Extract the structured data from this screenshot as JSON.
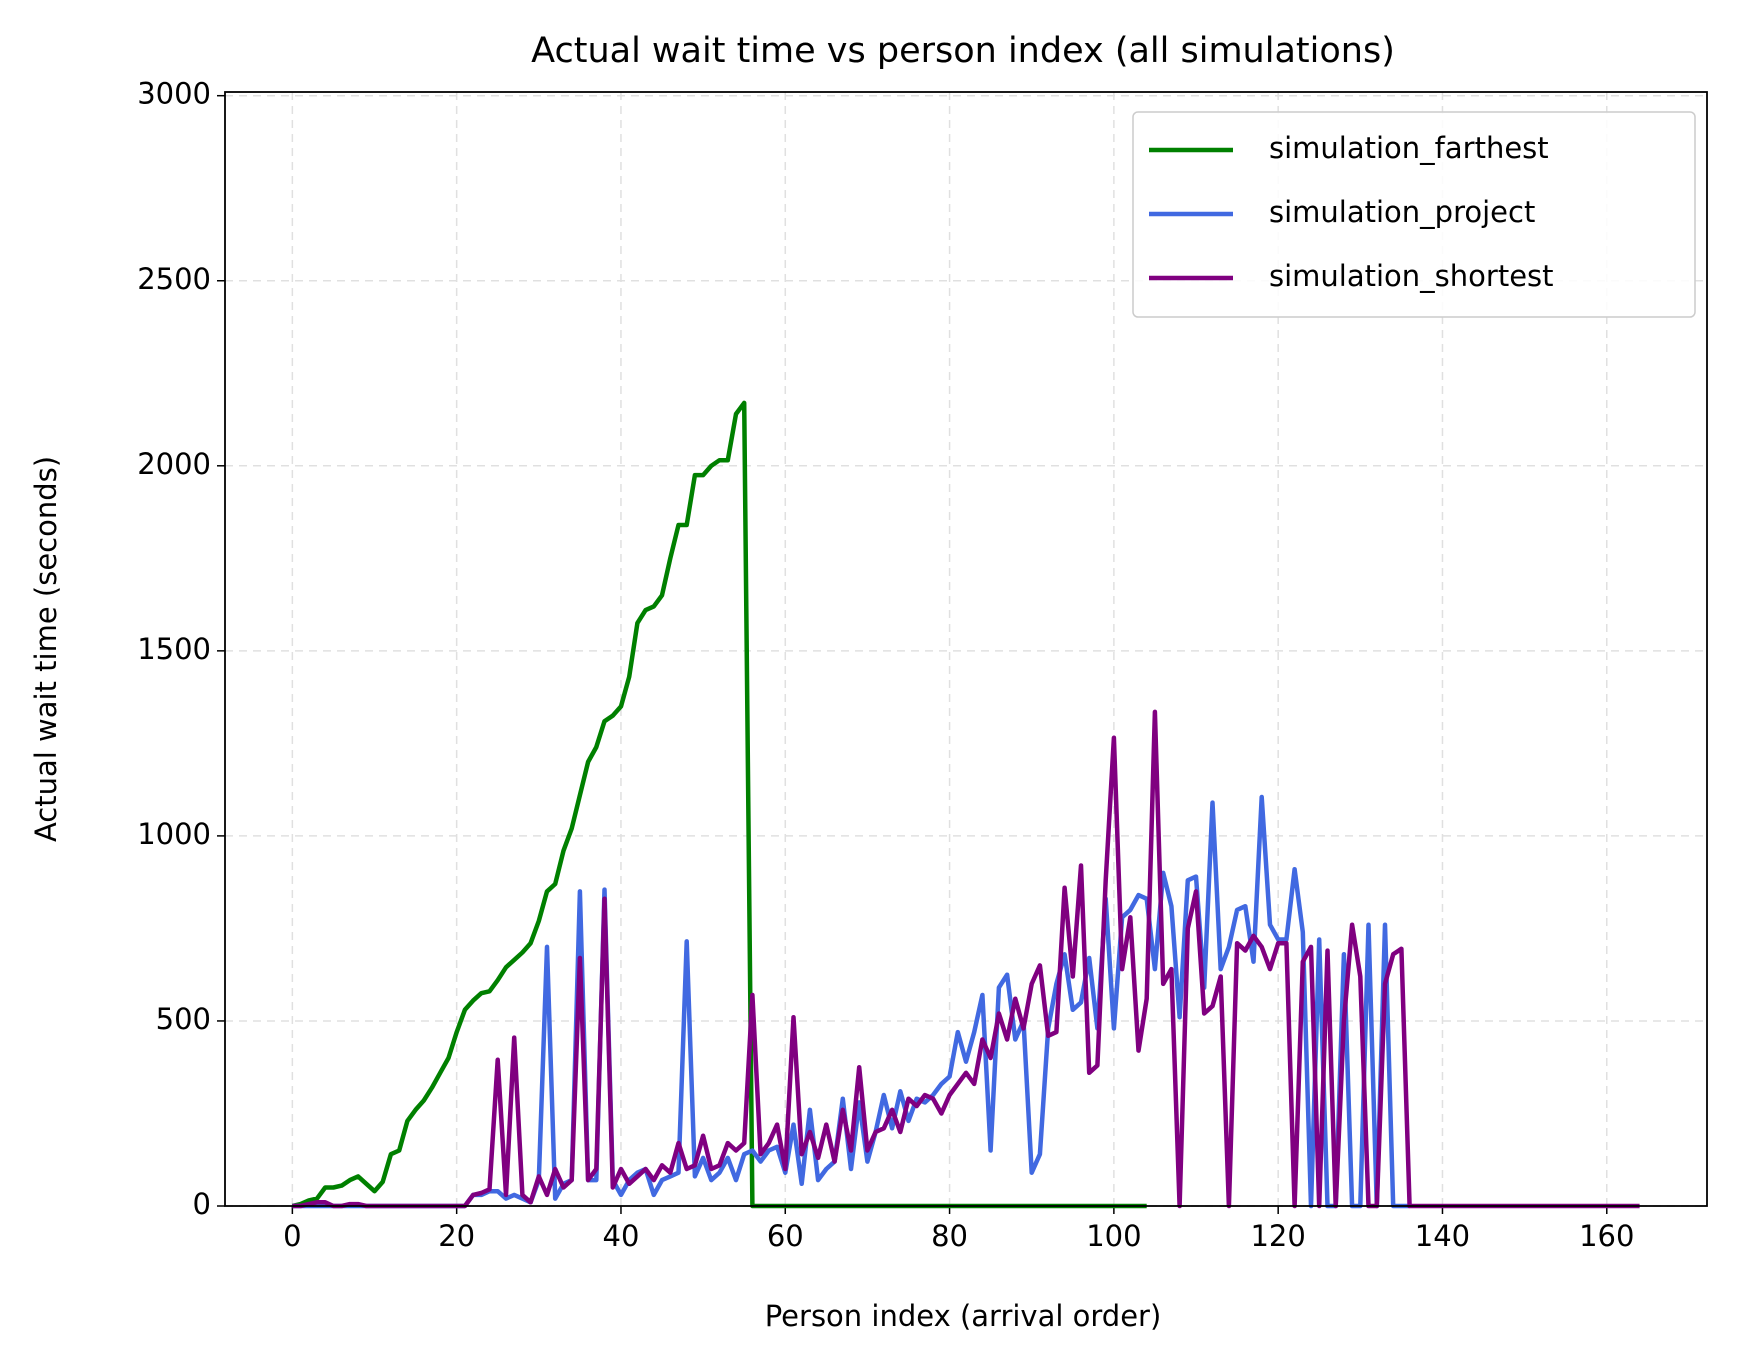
{
  "chart_data": {
    "type": "line",
    "title": "Actual wait time vs person index (all simulations)",
    "xlabel": "Person index (arrival order)",
    "ylabel": "Actual wait time (seconds)",
    "x": [
      0,
      1,
      2,
      3,
      4,
      5,
      6,
      7,
      8,
      9,
      10,
      11,
      12,
      13,
      14,
      15,
      16,
      17,
      18,
      19,
      20,
      21,
      22,
      23,
      24,
      25,
      26,
      27,
      28,
      29,
      30,
      31,
      32,
      33,
      34,
      35,
      36,
      37,
      38,
      39,
      40,
      41,
      42,
      43,
      44,
      45,
      46,
      47,
      48,
      49,
      50,
      51,
      52,
      53,
      54,
      55,
      56,
      57,
      58,
      59,
      60,
      61,
      62,
      63,
      64,
      65,
      66,
      67,
      68,
      69,
      70,
      71,
      72,
      73,
      74,
      75,
      76,
      77,
      78,
      79,
      80,
      81,
      82,
      83,
      84,
      85,
      86,
      87,
      88,
      89,
      90,
      91,
      92,
      93,
      94,
      95,
      96,
      97,
      98,
      99,
      100,
      101,
      102,
      103,
      104,
      105,
      106,
      107,
      108,
      109,
      110,
      111,
      112,
      113,
      114,
      115,
      116,
      117,
      118,
      119,
      120,
      121,
      122,
      123,
      124,
      125,
      126,
      127,
      128,
      129,
      130,
      131,
      132,
      133,
      134,
      135,
      136,
      137,
      138,
      139,
      140,
      141,
      142,
      143,
      144,
      145,
      146,
      147,
      148,
      149,
      150,
      151,
      152,
      153,
      154,
      155,
      156,
      157,
      158,
      159,
      160,
      161,
      162,
      163,
      164
    ],
    "series": [
      {
        "name": "simulation_farthest",
        "color": "#008000",
        "values": [
          0,
          5,
          15,
          20,
          50,
          50,
          55,
          70,
          80,
          60,
          40,
          65,
          140,
          150,
          230,
          260,
          285,
          320,
          360,
          400,
          470,
          530,
          555,
          575,
          580,
          610,
          645,
          665,
          685,
          710,
          770,
          850,
          870,
          960,
          1020,
          1110,
          1200,
          1240,
          1310,
          1325,
          1350,
          1430,
          1575,
          1610,
          1620,
          1650,
          1750,
          1840,
          1840,
          1975,
          1975,
          2000,
          2015,
          2015,
          2140,
          2170,
          0,
          0,
          0,
          0,
          0,
          0,
          0,
          0,
          0,
          0,
          0,
          0,
          0,
          0,
          0,
          0,
          0,
          0,
          0,
          0,
          0,
          0,
          0,
          0,
          0,
          0,
          0,
          0,
          0,
          0,
          0,
          0,
          0,
          0,
          0,
          0,
          0,
          0,
          0,
          0,
          0,
          0,
          0,
          0,
          0,
          0,
          0,
          0,
          0,
          null,
          null,
          null,
          null,
          null,
          null,
          null,
          null,
          null,
          null,
          null,
          null,
          null,
          null,
          null,
          null,
          null,
          null,
          null,
          null,
          null,
          null,
          null,
          null,
          null,
          null,
          null,
          null,
          null,
          null,
          null,
          null,
          null,
          null,
          null,
          null,
          null,
          null,
          null,
          null,
          null,
          null,
          null,
          null,
          null,
          null,
          null,
          null,
          null,
          null,
          null,
          null,
          null,
          null,
          null,
          null,
          null,
          null,
          null,
          null
        ]
      },
      {
        "name": "simulation_project",
        "color": "#4169e1",
        "values": [
          0,
          0,
          0,
          0,
          0,
          0,
          0,
          0,
          0,
          0,
          0,
          0,
          0,
          0,
          0,
          0,
          0,
          0,
          0,
          0,
          0,
          0,
          30,
          30,
          40,
          40,
          20,
          30,
          20,
          10,
          70,
          700,
          20,
          60,
          70,
          850,
          70,
          70,
          855,
          70,
          30,
          70,
          90,
          100,
          30,
          70,
          80,
          90,
          715,
          80,
          130,
          70,
          90,
          130,
          70,
          140,
          150,
          120,
          150,
          160,
          90,
          220,
          60,
          260,
          70,
          100,
          120,
          290,
          100,
          280,
          120,
          200,
          300,
          210,
          310,
          230,
          290,
          280,
          300,
          330,
          350,
          470,
          390,
          470,
          570,
          150,
          590,
          625,
          450,
          500,
          90,
          140,
          480,
          600,
          680,
          530,
          550,
          670,
          480,
          830,
          480,
          780,
          800,
          840,
          830,
          640,
          900,
          810,
          510,
          880,
          890,
          590,
          1090,
          640,
          700,
          800,
          810,
          660,
          1105,
          760,
          720,
          720,
          910,
          740,
          0,
          720,
          0,
          0,
          680,
          0,
          0,
          760,
          0,
          760,
          0,
          0,
          0,
          null,
          null,
          null,
          null,
          null,
          null,
          null,
          null,
          null,
          null,
          null,
          null,
          null,
          null,
          null,
          null,
          null,
          null,
          null,
          null,
          null,
          null,
          null,
          null,
          null,
          null,
          null,
          null
        ]
      },
      {
        "name": "simulation_shortest",
        "color": "#800080",
        "values": [
          0,
          0,
          5,
          10,
          10,
          0,
          0,
          5,
          5,
          0,
          0,
          0,
          0,
          0,
          0,
          0,
          0,
          0,
          0,
          0,
          0,
          0,
          30,
          35,
          45,
          395,
          30,
          455,
          30,
          10,
          80,
          30,
          100,
          50,
          70,
          670,
          70,
          100,
          830,
          50,
          100,
          60,
          80,
          100,
          70,
          110,
          90,
          170,
          100,
          110,
          190,
          100,
          110,
          170,
          150,
          170,
          570,
          140,
          170,
          220,
          100,
          510,
          140,
          200,
          130,
          220,
          120,
          260,
          150,
          375,
          150,
          200,
          210,
          260,
          200,
          290,
          270,
          300,
          290,
          250,
          300,
          330,
          360,
          330,
          450,
          400,
          520,
          450,
          560,
          480,
          600,
          650,
          460,
          470,
          860,
          620,
          920,
          360,
          380,
          880,
          1265,
          640,
          780,
          420,
          560,
          1335,
          600,
          640,
          0,
          750,
          850,
          520,
          540,
          620,
          0,
          710,
          690,
          730,
          700,
          640,
          710,
          710,
          0,
          660,
          700,
          0,
          690,
          0,
          500,
          760,
          620,
          0,
          0,
          600,
          680,
          695,
          0,
          0,
          0,
          0,
          0,
          0,
          0,
          0,
          0,
          0,
          0,
          0,
          0,
          0,
          0,
          0,
          0,
          0,
          0,
          0,
          0,
          0,
          0,
          0,
          0,
          0,
          0,
          0,
          0
        ]
      }
    ],
    "xlim": [
      -8.2,
      172.2
    ],
    "xticks": [
      0,
      20,
      40,
      60,
      80,
      100,
      120,
      140,
      160
    ],
    "ylim": [
      0,
      3010
    ],
    "yticks": [
      0,
      500,
      1000,
      1500,
      2000,
      2500,
      3000
    ],
    "grid": true,
    "legend": "upper right"
  }
}
